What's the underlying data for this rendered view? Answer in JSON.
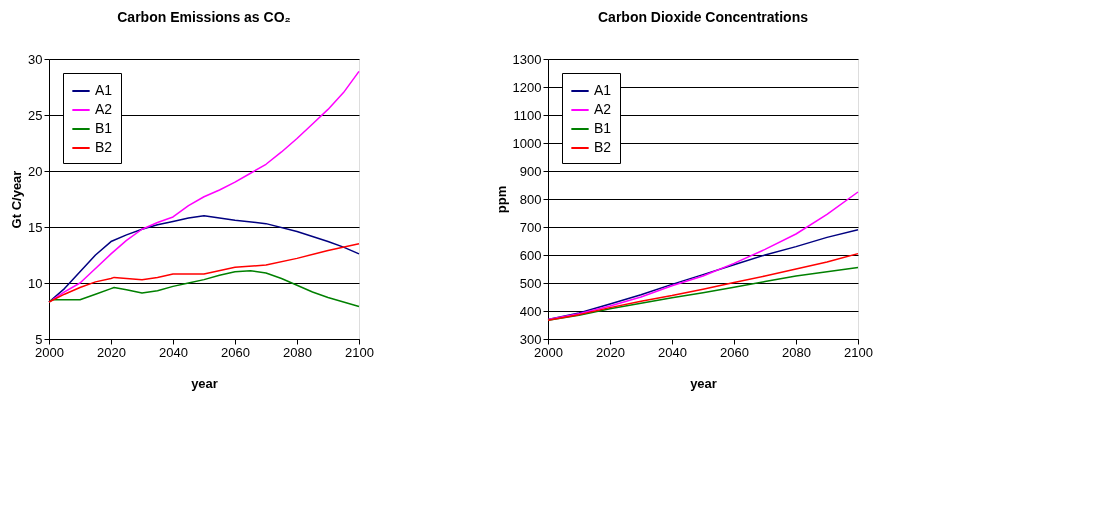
{
  "chart_data": [
    {
      "type": "line",
      "title": "Carbon Emissions as CO₂",
      "xlabel": "year",
      "ylabel": "Gt C/year",
      "xlim": [
        2000,
        2100
      ],
      "xticks": [
        2000,
        2020,
        2040,
        2060,
        2080,
        2100
      ],
      "ylim": [
        5,
        30
      ],
      "yticks": [
        5,
        10,
        15,
        20,
        25,
        30
      ],
      "grid": "y",
      "legend": "top left",
      "series": [
        {
          "name": "A1",
          "color": "#000080",
          "x": [
            2000,
            2005,
            2010,
            2015,
            2020,
            2025,
            2030,
            2035,
            2040,
            2045,
            2050,
            2055,
            2060,
            2070,
            2080,
            2090,
            2095,
            2100
          ],
          "values": [
            8.3,
            9.5,
            11,
            12.5,
            13.7,
            14.3,
            14.8,
            15.2,
            15.5,
            15.8,
            16.0,
            15.8,
            15.6,
            15.3,
            14.6,
            13.7,
            13.2,
            12.6
          ]
        },
        {
          "name": "A2",
          "color": "#ff00ff",
          "x": [
            2000,
            2005,
            2010,
            2015,
            2020,
            2025,
            2030,
            2035,
            2040,
            2045,
            2050,
            2055,
            2060,
            2065,
            2070,
            2075,
            2080,
            2085,
            2090,
            2095,
            2100
          ],
          "values": [
            8.3,
            9.2,
            10,
            11.3,
            12.6,
            13.8,
            14.8,
            15.4,
            15.9,
            16.9,
            17.7,
            18.3,
            19.0,
            19.8,
            20.6,
            21.7,
            22.9,
            24.2,
            25.5,
            27.0,
            28.9
          ]
        },
        {
          "name": "B1",
          "color": "#008000",
          "x": [
            2000,
            2001,
            2010,
            2015,
            2020,
            2021,
            2025,
            2030,
            2035,
            2040,
            2045,
            2050,
            2055,
            2060,
            2065,
            2070,
            2075,
            2080,
            2085,
            2090,
            2095,
            2100
          ],
          "values": [
            8.3,
            8.5,
            8.5,
            9.0,
            9.5,
            9.6,
            9.4,
            9.1,
            9.3,
            9.7,
            10.0,
            10.3,
            10.7,
            11.0,
            11.1,
            10.9,
            10.4,
            9.8,
            9.2,
            8.7,
            8.3,
            7.9
          ]
        },
        {
          "name": "B2",
          "color": "#ff0000",
          "x": [
            2000,
            2005,
            2010,
            2015,
            2020,
            2021,
            2025,
            2030,
            2035,
            2040,
            2050,
            2060,
            2070,
            2080,
            2090,
            2100
          ],
          "values": [
            8.3,
            9.0,
            9.6,
            10.1,
            10.4,
            10.5,
            10.4,
            10.3,
            10.5,
            10.8,
            10.8,
            11.4,
            11.6,
            12.2,
            12.9,
            13.5
          ]
        }
      ]
    },
    {
      "type": "line",
      "title": "Carbon Dioxide Concentrations",
      "xlabel": "year",
      "ylabel": "ppm",
      "xlim": [
        2000,
        2100
      ],
      "xticks": [
        2000,
        2020,
        2040,
        2060,
        2080,
        2100
      ],
      "ylim": [
        300,
        1300
      ],
      "yticks": [
        300,
        400,
        500,
        600,
        700,
        800,
        900,
        1000,
        1100,
        1200,
        1300
      ],
      "grid": "y",
      "legend": "top left",
      "series": [
        {
          "name": "A1",
          "color": "#000080",
          "x": [
            2000,
            2010,
            2020,
            2030,
            2040,
            2050,
            2060,
            2070,
            2080,
            2090,
            2100
          ],
          "values": [
            370,
            393,
            425,
            458,
            495,
            530,
            565,
            600,
            630,
            663,
            690
          ]
        },
        {
          "name": "A2",
          "color": "#ff00ff",
          "x": [
            2000,
            2010,
            2020,
            2030,
            2040,
            2050,
            2060,
            2070,
            2080,
            2090,
            2100
          ],
          "values": [
            370,
            390,
            418,
            450,
            490,
            525,
            570,
            620,
            675,
            745,
            825
          ]
        },
        {
          "name": "B1",
          "color": "#008000",
          "x": [
            2000,
            2010,
            2020,
            2030,
            2040,
            2050,
            2060,
            2070,
            2080,
            2090,
            2100
          ],
          "values": [
            367,
            385,
            408,
            428,
            447,
            465,
            485,
            505,
            525,
            540,
            555
          ]
        },
        {
          "name": "B2",
          "color": "#ff0000",
          "x": [
            2000,
            2010,
            2020,
            2030,
            2040,
            2050,
            2060,
            2070,
            2080,
            2090,
            2100
          ],
          "values": [
            367,
            387,
            412,
            435,
            455,
            478,
            502,
            525,
            550,
            575,
            605
          ]
        }
      ]
    }
  ]
}
